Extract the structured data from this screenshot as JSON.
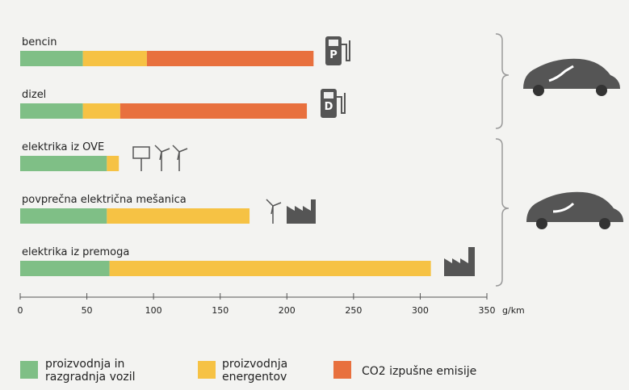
{
  "chart_data": {
    "type": "bar",
    "orientation": "horizontal",
    "stacked": true,
    "categories": [
      "bencin",
      "dizel",
      "elektrika iz OVE",
      "povprečna električna mešanica",
      "elektrika iz premoga"
    ],
    "series": [
      {
        "name": "proizvodnja in razgradnja vozil",
        "color": "#7fbf86",
        "values": [
          47,
          47,
          65,
          65,
          67
        ]
      },
      {
        "name": "proizvodnja energentov",
        "color": "#f6c244",
        "values": [
          48,
          28,
          9,
          107,
          241
        ]
      },
      {
        "name": "CO2 izpušne emisije",
        "color": "#e8703e",
        "values": [
          125,
          140,
          0,
          0,
          0
        ]
      }
    ],
    "x_label": "g/km",
    "xlim": [
      0,
      350
    ],
    "xticks": [
      0,
      50,
      100,
      150,
      200,
      250,
      300,
      350
    ]
  }
}
